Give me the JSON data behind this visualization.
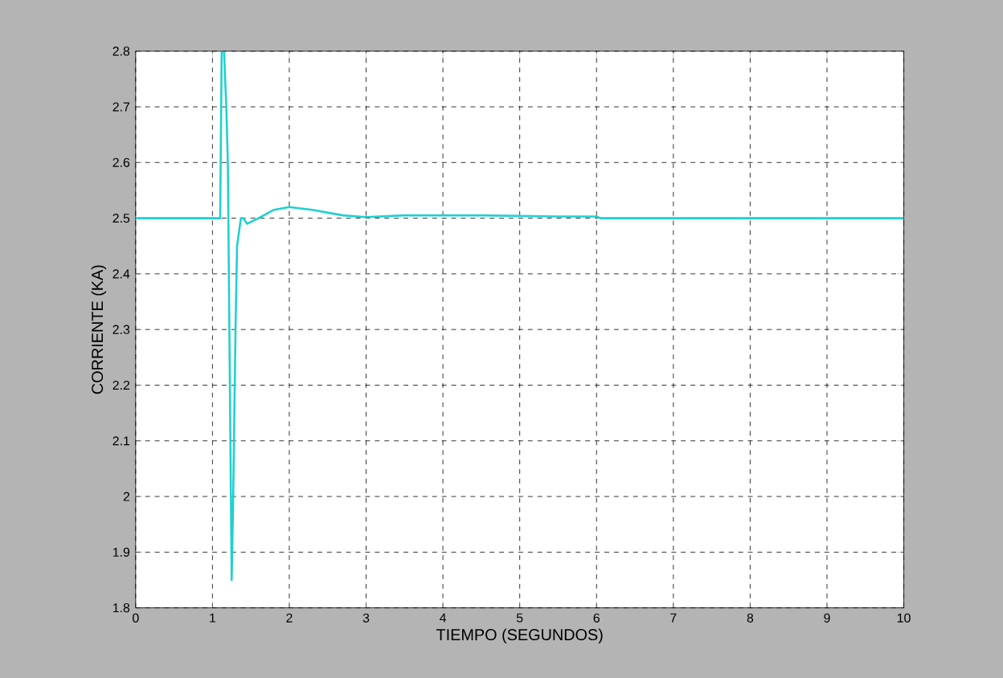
{
  "chart_data": {
    "type": "line",
    "xlabel": "TIEMPO (SEGUNDOS)",
    "ylabel": "CORRIENTE (KA)",
    "xlim": [
      0,
      10
    ],
    "ylim": [
      1.8,
      2.8
    ],
    "xticks": [
      0,
      1,
      2,
      3,
      4,
      5,
      6,
      7,
      8,
      9,
      10
    ],
    "yticks": [
      1.8,
      1.9,
      {
        "value": 2,
        "label": "2"
      },
      2.1,
      2.2,
      2.3,
      2.4,
      2.5,
      2.6,
      2.7,
      2.8
    ],
    "grid": true,
    "series": [
      {
        "color": "#20d0d0",
        "x": [
          0,
          1.1,
          1.12,
          1.15,
          1.18,
          1.2,
          1.22,
          1.24,
          1.25,
          1.27,
          1.3,
          1.32,
          1.37,
          1.4,
          1.45,
          1.6,
          1.8,
          2.0,
          2.3,
          2.7,
          3.0,
          3.5,
          4.5,
          5.5,
          6.0,
          6.05,
          10
        ],
        "values": [
          2.5,
          2.5,
          2.8,
          2.8,
          2.7,
          2.6,
          2.3,
          2.0,
          1.85,
          2.0,
          2.3,
          2.45,
          2.5,
          2.5,
          2.49,
          2.5,
          2.515,
          2.52,
          2.515,
          2.505,
          2.502,
          2.505,
          2.505,
          2.503,
          2.503,
          2.5,
          2.5
        ]
      }
    ]
  }
}
